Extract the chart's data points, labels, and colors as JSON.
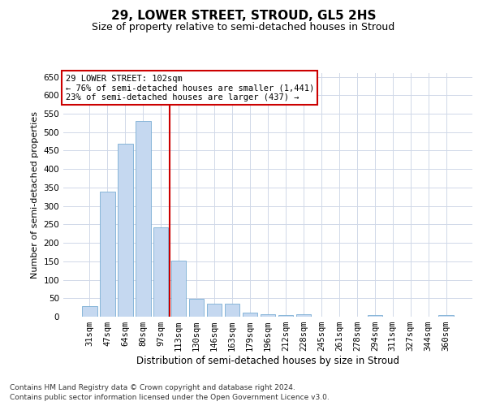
{
  "title": "29, LOWER STREET, STROUD, GL5 2HS",
  "subtitle": "Size of property relative to semi-detached houses in Stroud",
  "xlabel": "Distribution of semi-detached houses by size in Stroud",
  "ylabel": "Number of semi-detached properties",
  "categories": [
    "31sqm",
    "47sqm",
    "64sqm",
    "80sqm",
    "97sqm",
    "113sqm",
    "130sqm",
    "146sqm",
    "163sqm",
    "179sqm",
    "196sqm",
    "212sqm",
    "228sqm",
    "245sqm",
    "261sqm",
    "278sqm",
    "294sqm",
    "311sqm",
    "327sqm",
    "344sqm",
    "360sqm"
  ],
  "values": [
    29,
    338,
    468,
    530,
    243,
    152,
    49,
    36,
    35,
    12,
    6,
    4,
    7,
    1,
    0,
    0,
    5,
    0,
    1,
    0,
    5
  ],
  "bar_color": "#c5d8f0",
  "bar_edge_color": "#7aadd4",
  "vline_color": "#cc0000",
  "annotation_text": "29 LOWER STREET: 102sqm\n← 76% of semi-detached houses are smaller (1,441)\n23% of semi-detached houses are larger (437) →",
  "annotation_box_color": "#ffffff",
  "annotation_box_edge_color": "#cc0000",
  "annotation_fontsize": 7.5,
  "ylim": [
    0,
    660
  ],
  "yticks": [
    0,
    50,
    100,
    150,
    200,
    250,
    300,
    350,
    400,
    450,
    500,
    550,
    600,
    650
  ],
  "title_fontsize": 11,
  "subtitle_fontsize": 9,
  "xlabel_fontsize": 8.5,
  "ylabel_fontsize": 8,
  "tick_fontsize": 7.5,
  "footer_line1": "Contains HM Land Registry data © Crown copyright and database right 2024.",
  "footer_line2": "Contains public sector information licensed under the Open Government Licence v3.0.",
  "footer_fontsize": 6.5,
  "background_color": "#ffffff",
  "grid_color": "#d0d8e8"
}
